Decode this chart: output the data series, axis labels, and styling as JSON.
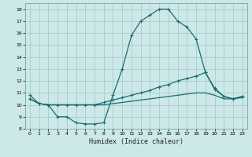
{
  "xlabel": "Humidex (Indice chaleur)",
  "background_color": "#cce8e8",
  "grid_color": "#aacccc",
  "line_color": "#1e6b6b",
  "xlim": [
    -0.5,
    23.5
  ],
  "ylim": [
    8.0,
    18.5
  ],
  "xticks": [
    0,
    1,
    2,
    3,
    4,
    5,
    6,
    7,
    8,
    9,
    10,
    11,
    12,
    13,
    14,
    15,
    16,
    17,
    18,
    19,
    20,
    21,
    22,
    23
  ],
  "yticks": [
    8,
    9,
    10,
    11,
    12,
    13,
    14,
    15,
    16,
    17,
    18
  ],
  "line1_x": [
    0,
    1,
    2,
    3,
    4,
    5,
    6,
    7,
    8,
    9,
    10,
    11,
    12,
    13,
    14,
    15,
    16,
    17,
    18,
    19,
    20,
    21,
    22,
    23
  ],
  "line1_y": [
    10.8,
    10.1,
    10.0,
    9.0,
    9.0,
    8.5,
    8.4,
    8.4,
    8.5,
    10.8,
    13.0,
    15.8,
    17.0,
    17.5,
    18.0,
    18.0,
    17.0,
    16.5,
    15.5,
    12.7,
    11.4,
    10.7,
    10.5,
    10.7
  ],
  "line2_x": [
    0,
    1,
    2,
    3,
    4,
    5,
    6,
    7,
    8,
    9,
    10,
    11,
    12,
    13,
    14,
    15,
    16,
    17,
    18,
    19,
    20,
    21,
    22,
    23
  ],
  "line2_y": [
    10.5,
    10.1,
    10.0,
    10.0,
    10.0,
    10.0,
    10.0,
    10.0,
    10.2,
    10.4,
    10.6,
    10.8,
    11.0,
    11.2,
    11.5,
    11.7,
    12.0,
    12.2,
    12.4,
    12.7,
    11.3,
    10.7,
    10.5,
    10.7
  ],
  "line3_x": [
    0,
    1,
    2,
    3,
    4,
    5,
    6,
    7,
    8,
    9,
    10,
    11,
    12,
    13,
    14,
    15,
    16,
    17,
    18,
    19,
    20,
    21,
    22,
    23
  ],
  "line3_y": [
    10.5,
    10.1,
    10.0,
    10.0,
    10.0,
    10.0,
    10.0,
    10.0,
    10.0,
    10.1,
    10.2,
    10.3,
    10.4,
    10.5,
    10.6,
    10.7,
    10.8,
    10.9,
    11.0,
    11.0,
    10.8,
    10.5,
    10.5,
    10.6
  ]
}
